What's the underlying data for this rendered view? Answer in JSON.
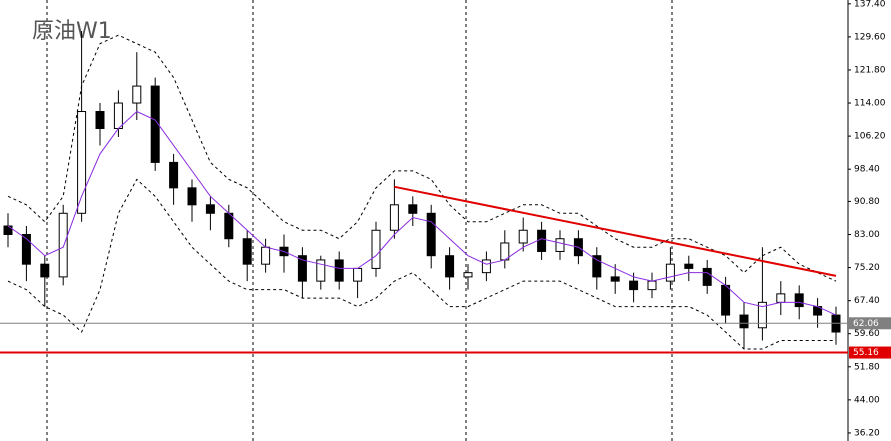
{
  "chart_data": {
    "type": "candlestick",
    "title": "原油W1",
    "ylim": [
      34.3,
      138.3
    ],
    "yticks": [
      {
        "value": 137.4,
        "label": "137.40"
      },
      {
        "value": 129.6,
        "label": "129.60"
      },
      {
        "value": 121.8,
        "label": "121.80"
      },
      {
        "value": 114,
        "label": "114.00"
      },
      {
        "value": 106.2,
        "label": "106.20"
      },
      {
        "value": 98.4,
        "label": "98.40"
      },
      {
        "value": 90.8,
        "label": "90.80"
      },
      {
        "value": 83,
        "label": "83.00"
      },
      {
        "value": 75.2,
        "label": "75.20"
      },
      {
        "value": 67.4,
        "label": "67.40"
      },
      {
        "value": 59.6,
        "label": "59.60"
      },
      {
        "value": 51.8,
        "label": "51.80"
      },
      {
        "value": 44,
        "label": "44.00"
      },
      {
        "value": 36.2,
        "label": "36.20"
      }
    ],
    "open": [
      85,
      83,
      76,
      73,
      88,
      112,
      108,
      114,
      118,
      100,
      94,
      90,
      88,
      82,
      76,
      80,
      78,
      72,
      77,
      72,
      75,
      84,
      90,
      88,
      78,
      73,
      74,
      77,
      81,
      84,
      79,
      82,
      78,
      73,
      72,
      70,
      72,
      76,
      75,
      71,
      64,
      61,
      67,
      69,
      66,
      64
    ],
    "close": [
      83,
      76,
      73,
      88,
      112,
      108,
      114,
      118,
      100,
      94,
      90,
      88,
      82,
      76,
      80,
      78,
      72,
      77,
      72,
      75,
      84,
      90,
      88,
      78,
      73,
      74,
      77,
      81,
      84,
      79,
      82,
      78,
      73,
      72,
      70,
      72,
      76,
      75,
      71,
      64,
      61,
      67,
      69,
      66,
      64,
      60
    ],
    "high": [
      88,
      85,
      78,
      90,
      131,
      114,
      117,
      126,
      120,
      102,
      96,
      92,
      90,
      84,
      82,
      83,
      80,
      78,
      79,
      75,
      86,
      96,
      92,
      90,
      80,
      76,
      79,
      84,
      87,
      86,
      84,
      84,
      80,
      76,
      74,
      74,
      80,
      78,
      77,
      73,
      67,
      80,
      72,
      71,
      68,
      66
    ],
    "low": [
      80,
      72,
      66,
      71,
      86,
      104,
      106,
      110,
      98,
      90,
      86,
      84,
      80,
      72,
      74,
      74,
      68,
      70,
      70,
      68,
      73,
      82,
      85,
      75,
      70,
      70,
      72,
      75,
      79,
      77,
      77,
      76,
      70,
      69,
      67,
      68,
      70,
      72,
      69,
      62,
      56,
      58,
      64,
      63,
      61,
      57
    ],
    "upper_band": [
      92,
      90,
      86,
      92,
      118,
      128,
      130,
      128,
      126,
      120,
      110,
      100,
      96,
      94,
      90,
      86,
      84,
      84,
      82,
      86,
      94,
      98,
      98,
      96,
      90,
      86,
      86,
      88,
      90,
      90,
      88,
      88,
      85,
      82,
      80,
      80,
      82,
      82,
      80,
      78,
      74,
      78,
      80,
      76,
      74,
      72
    ],
    "lower_band": [
      72,
      70,
      66,
      64,
      60,
      70,
      88,
      96,
      92,
      86,
      80,
      76,
      72,
      70,
      70,
      70,
      68,
      68,
      68,
      66,
      68,
      72,
      74,
      70,
      66,
      66,
      68,
      70,
      72,
      72,
      72,
      70,
      68,
      66,
      66,
      66,
      66,
      66,
      64,
      60,
      56,
      56,
      58,
      58,
      58,
      58
    ],
    "ma": [
      85,
      82,
      78,
      80,
      92,
      102,
      108,
      112,
      110,
      104,
      98,
      92,
      88,
      84,
      80,
      79,
      77,
      76,
      75,
      75,
      78,
      83,
      87,
      86,
      82,
      78,
      76,
      77,
      80,
      82,
      81,
      80,
      77,
      75,
      73,
      72,
      73,
      74,
      74,
      71,
      67,
      66,
      67,
      67,
      66,
      64
    ],
    "ma_color": "#8a2be2",
    "trendline": {
      "start": [
        21,
        94.24
      ],
      "end": [
        45,
        73.25
      ],
      "color": "#e00000"
    },
    "price_lines": [
      {
        "value": 62.06,
        "color": "#808080"
      },
      {
        "value": 55.16,
        "color": "#e00000"
      }
    ]
  }
}
